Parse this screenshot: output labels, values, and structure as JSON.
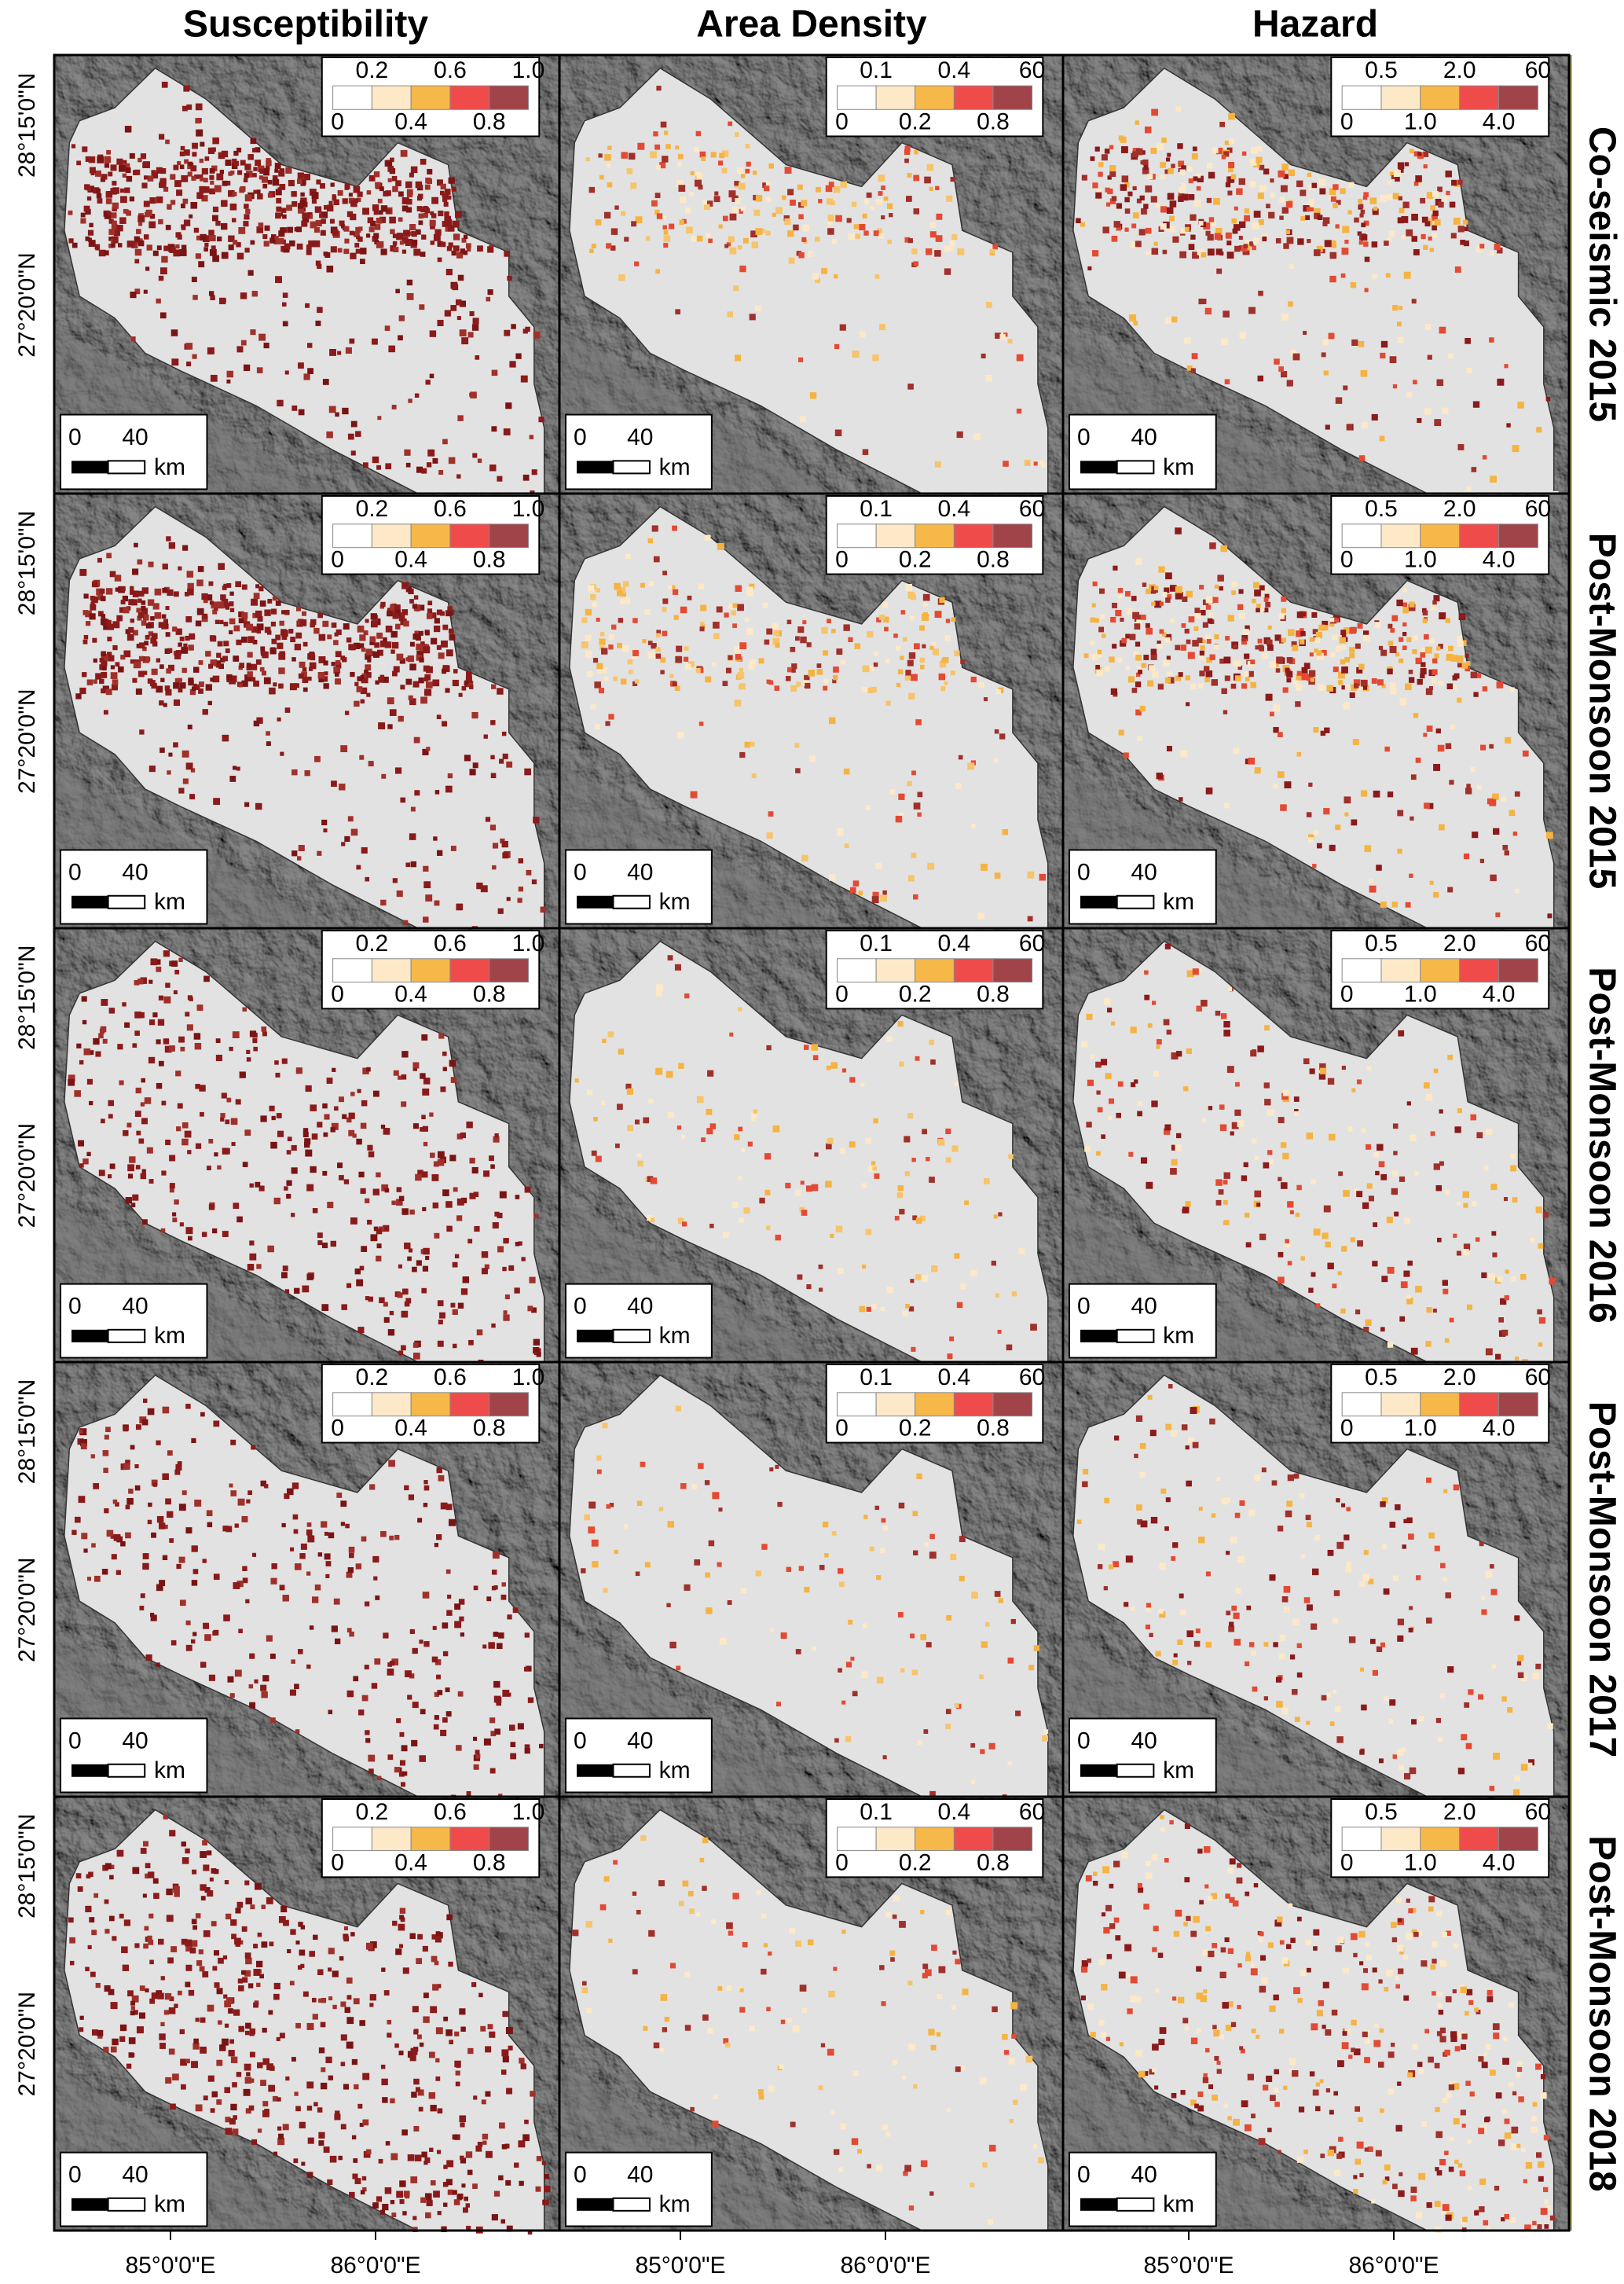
{
  "columns": [
    {
      "title": "Susceptibility",
      "legend": {
        "top": [
          "0.2",
          "0.6",
          "1.0"
        ],
        "bottom": [
          "0",
          "0.4",
          "0.8"
        ]
      }
    },
    {
      "title": "Area Density",
      "legend": {
        "top": [
          "0.1",
          "0.4",
          "60"
        ],
        "bottom": [
          "0",
          "0.2",
          "0.8"
        ]
      }
    },
    {
      "title": "Hazard",
      "legend": {
        "top": [
          "0.5",
          "2.0",
          "60"
        ],
        "bottom": [
          "0",
          "1.0",
          "4.0"
        ]
      }
    }
  ],
  "rows": [
    {
      "title": "Co-seismic 2015"
    },
    {
      "title": "Post-Monsoon 2015"
    },
    {
      "title": "Post-Monsoon 2016"
    },
    {
      "title": "Post-Monsoon 2017"
    },
    {
      "title": "Post-Monsoon 2018"
    }
  ],
  "lat_labels": [
    "28°15'0\"N",
    "27°20'0\"N"
  ],
  "lon_labels": [
    "85°0'0\"E",
    "86°0'0\"E"
  ],
  "scale_bar": {
    "start": "0",
    "end": "40",
    "unit": "km"
  }
}
